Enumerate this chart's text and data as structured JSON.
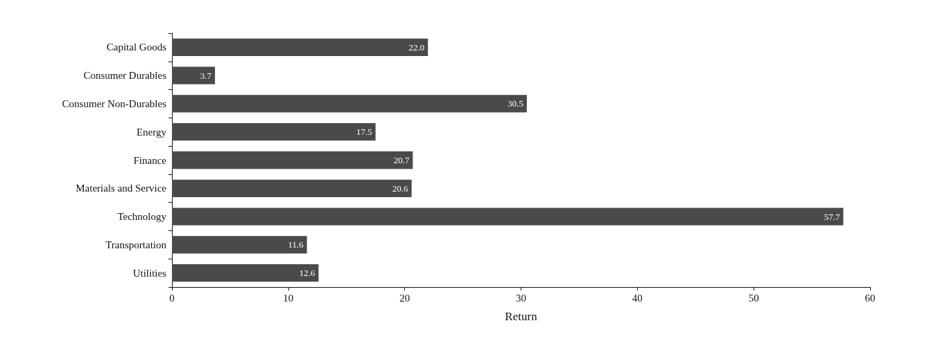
{
  "chart_data": {
    "type": "bar",
    "orientation": "horizontal",
    "xlabel": "Return",
    "categories": [
      "Capital Goods",
      "Consumer Durables",
      "Consumer Non-Durables",
      "Energy",
      "Finance",
      "Materials and Service",
      "Technology",
      "Transportation",
      "Utilities"
    ],
    "values": [
      22.0,
      3.7,
      30.5,
      17.5,
      20.7,
      20.6,
      57.7,
      11.6,
      12.6
    ],
    "value_labels": [
      "22.0",
      "3.7",
      "30.5",
      "17.5",
      "20.7",
      "20.6",
      "57.7",
      "11.6",
      "12.6"
    ],
    "color": "#4a4a4a",
    "xlim": [
      0,
      60
    ],
    "xticks": [
      0,
      10,
      20,
      30,
      40,
      50,
      60
    ],
    "grid": false
  }
}
